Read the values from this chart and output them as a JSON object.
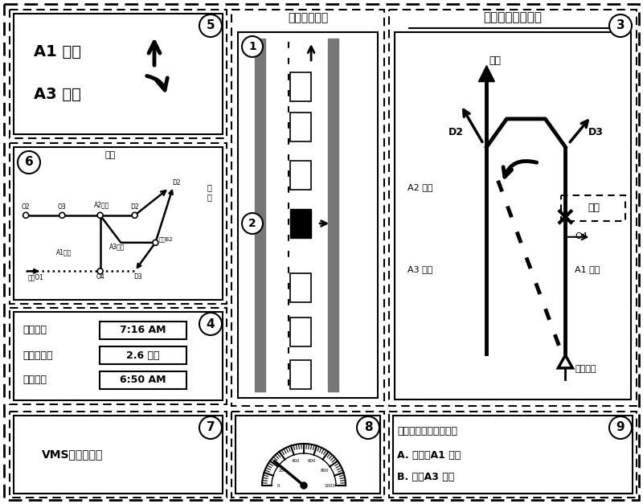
{
  "bg_color": "#ffffff",
  "panel5": {
    "label": "5",
    "text1": "A1 高速",
    "text2": "A3 高速"
  },
  "panel6": {
    "label": "6",
    "title": "路网"
  },
  "panel4": {
    "label": "4",
    "time": "7:16 AM",
    "distance": "2.6 公里",
    "depart": "6:50 AM",
    "label1": "当前时间",
    "label2": "已行驶里程",
    "label3": "出发时刻"
  },
  "panel_flow": {
    "title": "车流运行状况"
  },
  "panel_nav": {
    "label": "3",
    "title": "车载交通导行信息",
    "endpoint": "终点",
    "accident": "事故",
    "curpos": "当前位置"
  },
  "panel7": {
    "label": "7",
    "text": "VMS信息显示框"
  },
  "panel8": {
    "label": "8"
  },
  "panel9": {
    "label": "9",
    "title": "接下来的您的选择是：",
    "optA": "A. 继续走A1 高速",
    "optB": "B. 改走A3 高速"
  }
}
